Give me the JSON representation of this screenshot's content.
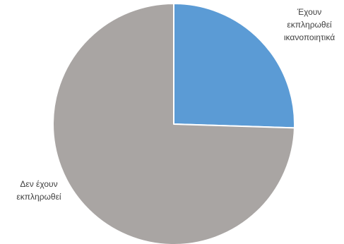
{
  "chart_data": {
    "type": "pie",
    "title": "",
    "legend": "none",
    "slices": [
      {
        "label_lines": [
          "Έχουν",
          "εκπληρωθεί",
          "ικανοποιητικά"
        ],
        "value": 25.5,
        "color": "#5b9bd5"
      },
      {
        "label_lines": [
          "Δεν έχουν",
          "εκπληρωθεί"
        ],
        "value": 74.5,
        "color": "#a9a5a3"
      }
    ]
  }
}
